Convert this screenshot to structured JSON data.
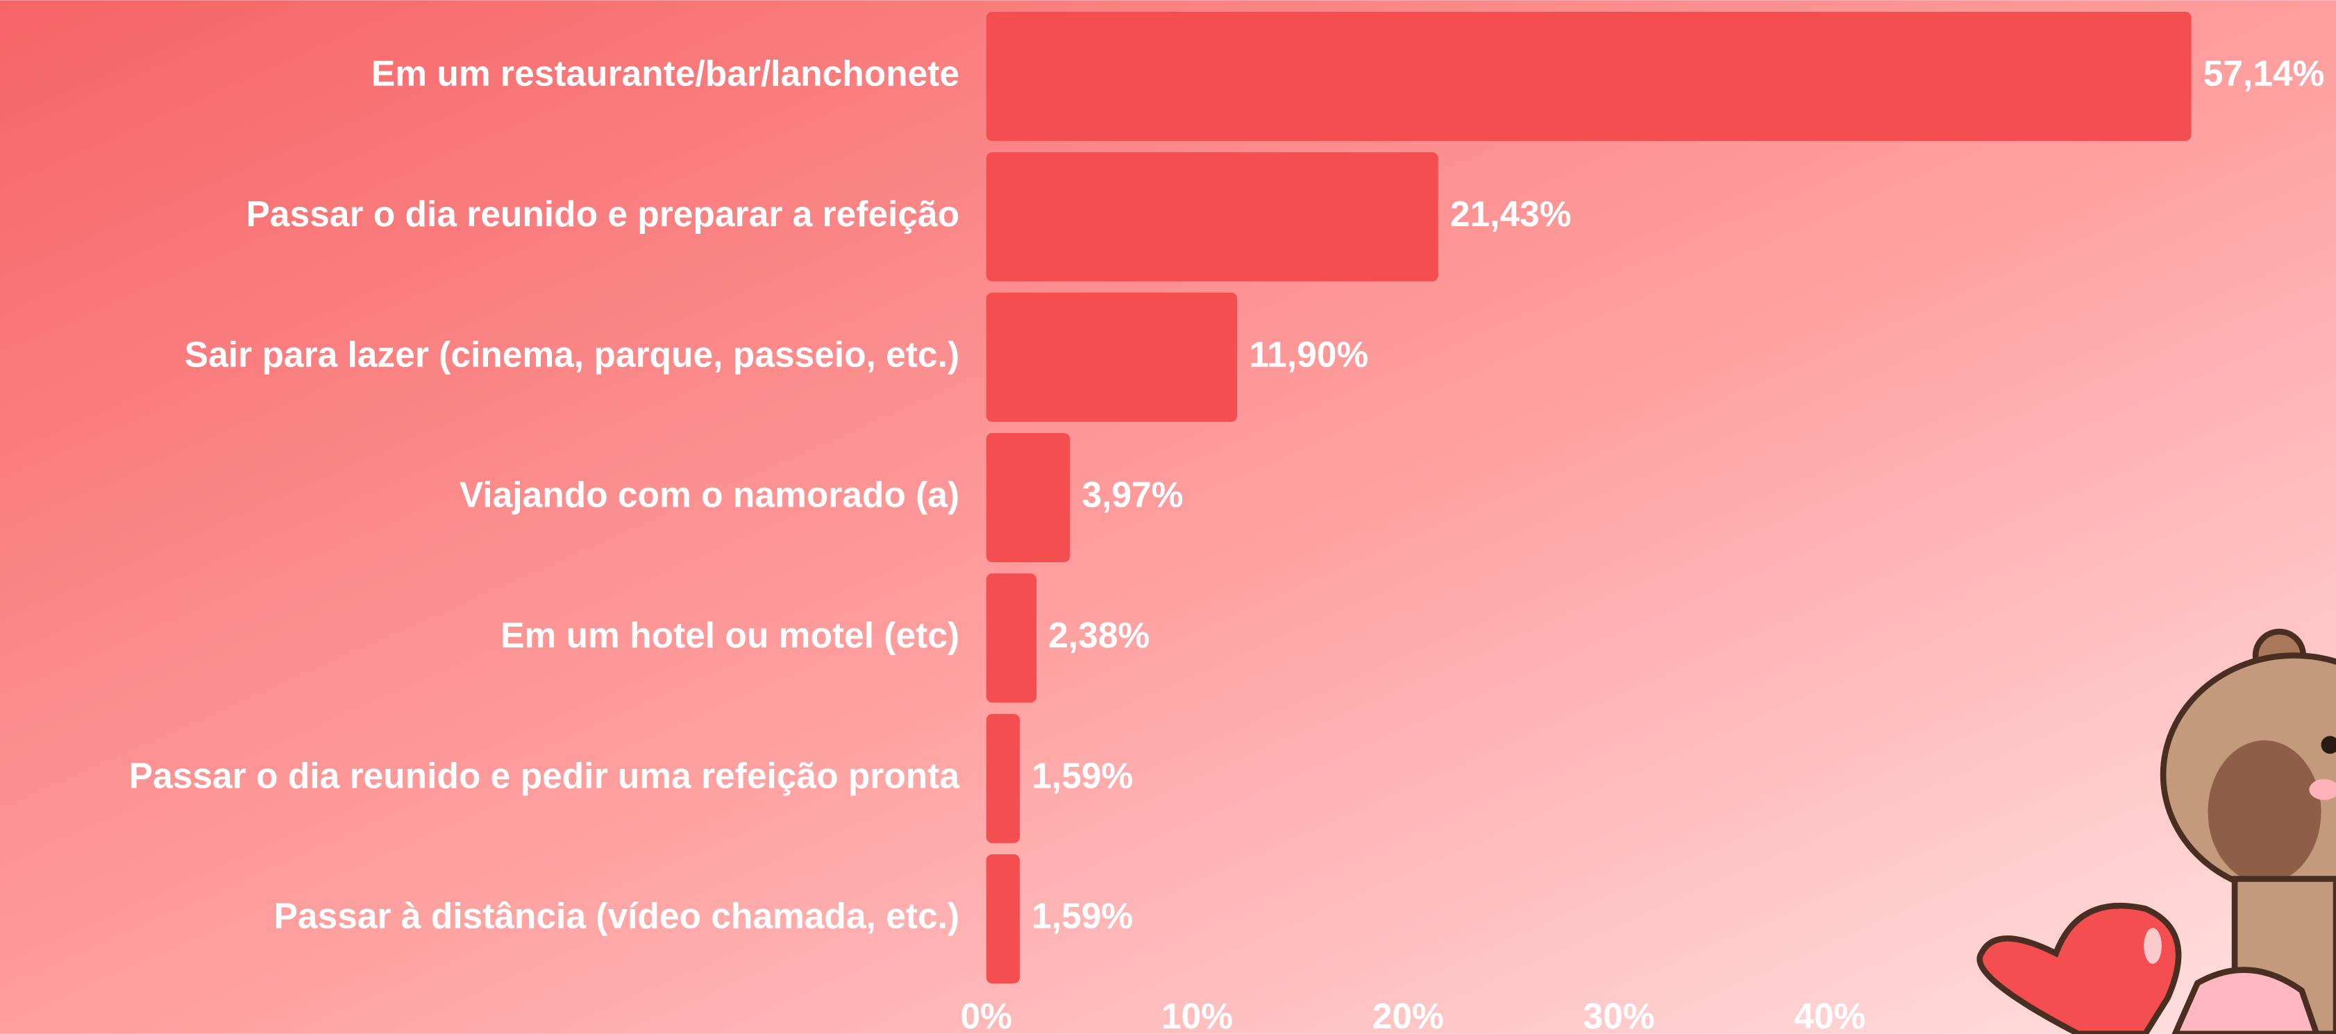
{
  "chart_data": {
    "type": "barh",
    "categories": [
      "Em um restaurante/bar/lanchonete",
      "Passar o dia reunido e preparar a refeição",
      "Sair para lazer (cinema, parque, passeio, etc.)",
      "Viajando com o namorado (a)",
      "Em um hotel ou motel (etc)",
      "Passar o dia reunido e pedir uma refeição pronta",
      "Passar à distância (vídeo chamada, etc.)"
    ],
    "values": [
      57.14,
      21.43,
      11.9,
      3.97,
      2.38,
      1.59,
      1.59
    ],
    "value_labels": [
      "57,14%",
      "21,43%",
      "11,90%",
      "3,97%",
      "2,38%",
      "1,59%",
      "1,59%"
    ],
    "color": "#f44e50",
    "xlim": [
      0,
      64
    ],
    "xticks": [
      {
        "value": 0,
        "label": "0%"
      },
      {
        "value": 10,
        "label": "10%"
      },
      {
        "value": 20,
        "label": "20%"
      },
      {
        "value": 30,
        "label": "30%"
      },
      {
        "value": 40,
        "label": "40%"
      }
    ]
  }
}
